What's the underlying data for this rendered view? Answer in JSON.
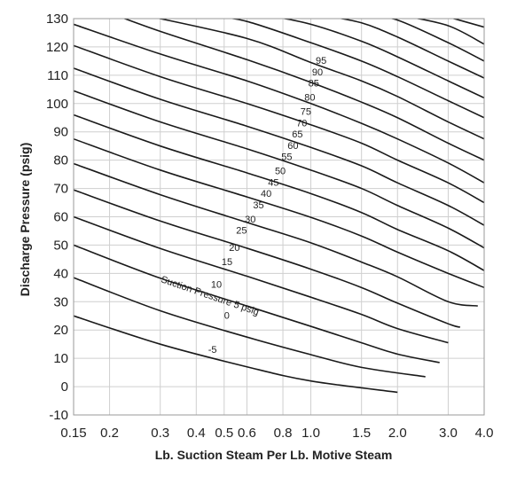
{
  "chart_data": {
    "type": "line",
    "xlabel": "Lb. Suction Steam Per Lb. Motive Steam",
    "ylabel": "Discharge Pressure (psig)",
    "x_scale": "log",
    "xlim": [
      0.15,
      4.0
    ],
    "ylim": [
      -10,
      130
    ],
    "grid": true,
    "x_ticks": [
      {
        "v": 0.15,
        "label": "0.15"
      },
      {
        "v": 0.2,
        "label": "0.2"
      },
      {
        "v": 0.3,
        "label": "0.3"
      },
      {
        "v": 0.4,
        "label": "0.4"
      },
      {
        "v": 0.5,
        "label": "0.5"
      },
      {
        "v": 0.6,
        "label": "0.6"
      },
      {
        "v": 0.8,
        "label": "0.8"
      },
      {
        "v": 1.0,
        "label": "1.0"
      },
      {
        "v": 1.5,
        "label": "1.5"
      },
      {
        "v": 2.0,
        "label": "2.0"
      },
      {
        "v": 3.0,
        "label": "3.0"
      },
      {
        "v": 4.0,
        "label": "4.0"
      }
    ],
    "y_ticks": [
      {
        "v": 130,
        "label": "130"
      },
      {
        "v": 120,
        "label": "120"
      },
      {
        "v": 110,
        "label": "110"
      },
      {
        "v": 100,
        "label": "100"
      },
      {
        "v": 90,
        "label": "90"
      },
      {
        "v": 80,
        "label": "80"
      },
      {
        "v": 70,
        "label": "70"
      },
      {
        "v": 60,
        "label": "60"
      },
      {
        "v": 50,
        "label": "50"
      },
      {
        "v": 40,
        "label": "40"
      },
      {
        "v": 30,
        "label": "30"
      },
      {
        "v": 20,
        "label": "20"
      },
      {
        "v": 10,
        "label": "10"
      },
      {
        "v": 0,
        "label": "0"
      },
      {
        "v": -10,
        "label": "-10"
      }
    ],
    "series": [
      {
        "name": "-5",
        "label": "-5",
        "label_at": [
          0.44,
          12
        ],
        "points": [
          [
            0.15,
            25
          ],
          [
            0.3,
            15
          ],
          [
            0.6,
            7
          ],
          [
            1.0,
            2
          ],
          [
            2.0,
            -2
          ]
        ]
      },
      {
        "name": "0",
        "label": "0",
        "label_at": [
          0.5,
          24
        ],
        "points": [
          [
            0.15,
            38.5
          ],
          [
            0.3,
            26.8
          ],
          [
            0.6,
            17.5
          ],
          [
            1.0,
            11.3
          ],
          [
            1.5,
            6.8
          ],
          [
            2.5,
            3.5
          ]
        ]
      },
      {
        "name": "Suction Pressure 5 psig",
        "label": "Suction Pressure 5 psig",
        "label_at": [
          0.3,
          37
        ],
        "label_rotate": 19,
        "points": [
          [
            0.15,
            50
          ],
          [
            0.3,
            38.3
          ],
          [
            0.6,
            28.5
          ],
          [
            1.0,
            21.3
          ],
          [
            1.5,
            15.5
          ],
          [
            2.0,
            11.5
          ],
          [
            2.8,
            8.5
          ]
        ]
      },
      {
        "name": "10",
        "label": "10",
        "label_at": [
          0.45,
          35
        ],
        "points": [
          [
            0.15,
            60
          ],
          [
            0.3,
            48.8
          ],
          [
            0.6,
            39
          ],
          [
            1.0,
            31.6
          ],
          [
            1.5,
            25.5
          ],
          [
            2.0,
            20.5
          ],
          [
            3.0,
            15.5
          ]
        ]
      },
      {
        "name": "15",
        "label": "15",
        "label_at": [
          0.49,
          43
        ],
        "points": [
          [
            0.15,
            69.5
          ],
          [
            0.3,
            58.5
          ],
          [
            0.6,
            48.9
          ],
          [
            1.0,
            41.5
          ],
          [
            1.5,
            35
          ],
          [
            2.0,
            29.5
          ],
          [
            3.0,
            22.2
          ],
          [
            3.3,
            21
          ]
        ]
      },
      {
        "name": "20",
        "label": "20",
        "label_at": [
          0.52,
          48
        ],
        "points": [
          [
            0.15,
            78.8
          ],
          [
            0.3,
            67.8
          ],
          [
            0.6,
            58
          ],
          [
            1.0,
            50.8
          ],
          [
            1.5,
            44
          ],
          [
            2.0,
            38.8
          ],
          [
            3.0,
            30
          ],
          [
            3.8,
            28.5
          ]
        ]
      },
      {
        "name": "25",
        "label": "25",
        "label_at": [
          0.55,
          54
        ],
        "points": [
          [
            0.15,
            87.5
          ],
          [
            0.3,
            76.5
          ],
          [
            0.6,
            67
          ],
          [
            1.0,
            59.8
          ],
          [
            1.5,
            53.2
          ],
          [
            2.0,
            47.5
          ],
          [
            3.0,
            40
          ],
          [
            4.0,
            35
          ]
        ]
      },
      {
        "name": "30",
        "label": "30",
        "label_at": [
          0.59,
          58
        ],
        "points": [
          [
            0.15,
            96
          ],
          [
            0.3,
            85
          ],
          [
            0.6,
            75.5
          ],
          [
            1.0,
            68.2
          ],
          [
            1.5,
            61.5
          ],
          [
            2.0,
            55.5
          ],
          [
            3.0,
            48
          ],
          [
            4.0,
            41
          ]
        ]
      },
      {
        "name": "35",
        "label": "35",
        "label_at": [
          0.63,
          63
        ],
        "points": [
          [
            0.15,
            104.5
          ],
          [
            0.3,
            93.5
          ],
          [
            0.6,
            84
          ],
          [
            1.0,
            76.5
          ],
          [
            1.5,
            70
          ],
          [
            2.0,
            64
          ],
          [
            3.0,
            56
          ],
          [
            4.0,
            49
          ]
        ]
      },
      {
        "name": "40",
        "label": "40",
        "label_at": [
          0.67,
          67
        ],
        "points": [
          [
            0.15,
            112.5
          ],
          [
            0.3,
            101.5
          ],
          [
            0.6,
            92
          ],
          [
            1.0,
            84.5
          ],
          [
            1.5,
            78
          ],
          [
            2.0,
            72
          ],
          [
            3.0,
            64
          ],
          [
            4.0,
            57
          ]
        ]
      },
      {
        "name": "45",
        "label": "45",
        "label_at": [
          0.71,
          71
        ],
        "points": [
          [
            0.15,
            120.5
          ],
          [
            0.3,
            109.5
          ],
          [
            0.6,
            100
          ],
          [
            1.0,
            92.5
          ],
          [
            1.5,
            86
          ],
          [
            2.0,
            80
          ],
          [
            3.0,
            72
          ],
          [
            4.0,
            65
          ]
        ]
      },
      {
        "name": "50",
        "label": "50",
        "label_at": [
          0.75,
          75
        ],
        "points": [
          [
            0.15,
            128
          ],
          [
            0.3,
            117.5
          ],
          [
            0.6,
            108
          ],
          [
            1.0,
            100
          ],
          [
            1.5,
            93
          ],
          [
            2.0,
            87.5
          ],
          [
            3.0,
            79
          ],
          [
            4.0,
            72
          ]
        ]
      },
      {
        "name": "55",
        "label": "55",
        "label_at": [
          0.79,
          80
        ],
        "points": [
          [
            0.2,
            132
          ],
          [
            0.3,
            125.5
          ],
          [
            0.6,
            115.5
          ],
          [
            1.0,
            107.5
          ],
          [
            1.5,
            100.5
          ],
          [
            2.0,
            95
          ],
          [
            3.0,
            86
          ],
          [
            4.0,
            80
          ]
        ]
      },
      {
        "name": "60",
        "label": "60",
        "label_at": [
          0.83,
          84
        ],
        "points": [
          [
            0.27,
            131
          ],
          [
            0.6,
            123
          ],
          [
            1.0,
            114.5
          ],
          [
            1.5,
            108
          ],
          [
            2.0,
            102.5
          ],
          [
            3.0,
            93.5
          ],
          [
            4.0,
            87.5
          ]
        ]
      },
      {
        "name": "65",
        "label": "65",
        "label_at": [
          0.86,
          88
        ],
        "points": [
          [
            0.45,
            131
          ],
          [
            0.6,
            129
          ],
          [
            1.0,
            121.5
          ],
          [
            1.5,
            115
          ],
          [
            2.0,
            109.5
          ],
          [
            3.0,
            101
          ],
          [
            4.0,
            95
          ]
        ]
      },
      {
        "name": "70",
        "label": "70",
        "label_at": [
          0.89,
          92
        ],
        "points": [
          [
            0.72,
            131
          ],
          [
            1.0,
            128
          ],
          [
            1.5,
            122
          ],
          [
            2.0,
            116.5
          ],
          [
            3.0,
            108
          ],
          [
            4.0,
            102
          ]
        ]
      },
      {
        "name": "75",
        "label": "75",
        "label_at": [
          0.92,
          96
        ],
        "points": [
          [
            1.12,
            131
          ],
          [
            1.5,
            128.5
          ],
          [
            2.0,
            123.5
          ],
          [
            3.0,
            115
          ],
          [
            4.0,
            109
          ]
        ]
      },
      {
        "name": "80",
        "label": "80",
        "label_at": [
          0.95,
          101
        ],
        "points": [
          [
            1.6,
            131
          ],
          [
            2.0,
            129.5
          ],
          [
            3.0,
            121.5
          ],
          [
            4.0,
            115
          ]
        ]
      },
      {
        "name": "85",
        "label": "85",
        "label_at": [
          0.98,
          106
        ],
        "points": [
          [
            2.1,
            131
          ],
          [
            3.0,
            127.5
          ],
          [
            4.0,
            121
          ]
        ]
      },
      {
        "name": "90",
        "label": "90",
        "label_at": [
          1.01,
          110
        ],
        "points": [
          [
            2.9,
            131
          ],
          [
            4.0,
            127
          ]
        ]
      },
      {
        "name": "95",
        "label": "95",
        "label_at": [
          1.04,
          114
        ],
        "points": [
          [
            3.9,
            131
          ],
          [
            4.0,
            130.5
          ]
        ]
      }
    ]
  }
}
